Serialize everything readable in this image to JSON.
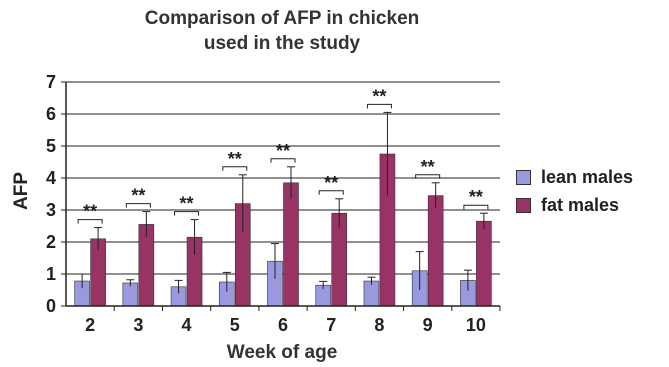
{
  "chart_data": {
    "type": "bar",
    "title_lines": [
      "Comparison of AFP in chicken",
      "used in the study"
    ],
    "xlabel": "Week of age",
    "ylabel": "AFP",
    "categories": [
      "2",
      "3",
      "4",
      "5",
      "6",
      "7",
      "8",
      "9",
      "10"
    ],
    "ylim": [
      0,
      7
    ],
    "yticks": [
      "0",
      "1",
      "2",
      "3",
      "4",
      "5",
      "6",
      "7"
    ],
    "grid": true,
    "legend_position": "right",
    "significance_label": "**",
    "series": [
      {
        "name": "lean males",
        "color": "#9999dd",
        "values": [
          0.78,
          0.72,
          0.6,
          0.75,
          1.4,
          0.65,
          0.78,
          1.1,
          0.8
        ],
        "errors": [
          0.22,
          0.1,
          0.2,
          0.3,
          0.55,
          0.12,
          0.12,
          0.6,
          0.32
        ]
      },
      {
        "name": "fat males",
        "color": "#993366",
        "values": [
          2.1,
          2.55,
          2.15,
          3.2,
          3.85,
          2.9,
          4.75,
          3.45,
          2.65
        ],
        "errors": [
          0.35,
          0.4,
          0.55,
          0.9,
          0.5,
          0.45,
          1.3,
          0.4,
          0.25
        ]
      }
    ]
  }
}
